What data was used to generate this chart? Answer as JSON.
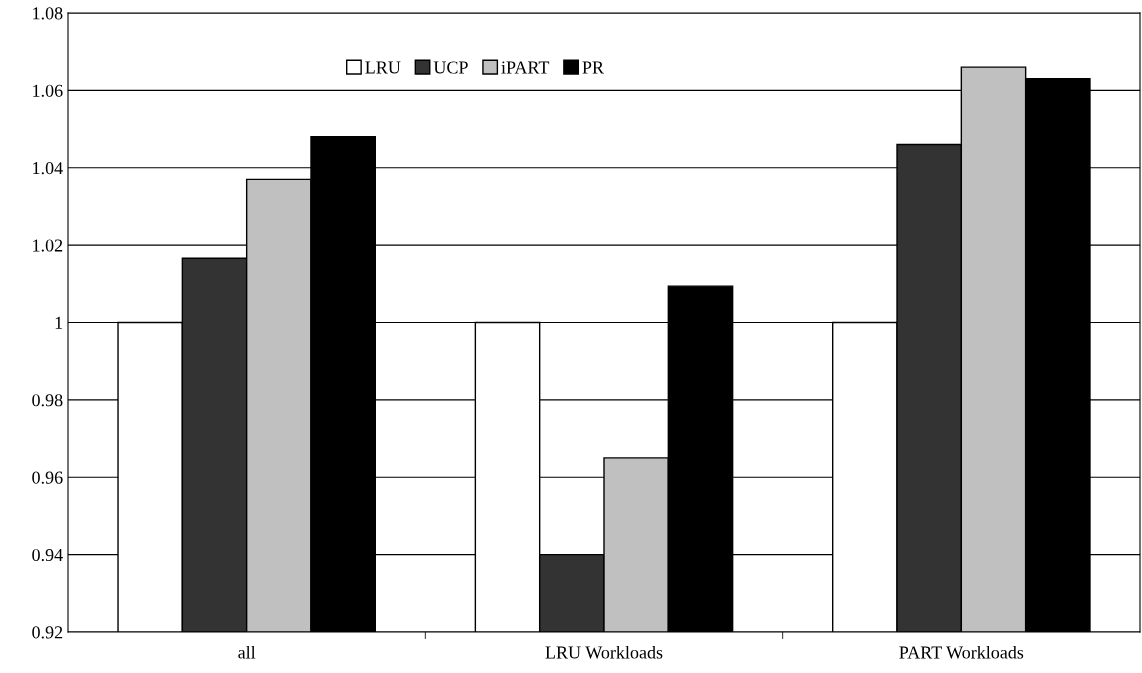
{
  "chart_data": {
    "type": "bar",
    "categories": [
      "all",
      "LRU Workloads",
      "PART Workloads"
    ],
    "series": [
      {
        "name": "LRU",
        "color": "#ffffff",
        "values": [
          1.0,
          1.0,
          1.0
        ]
      },
      {
        "name": "UCP",
        "color": "#333333",
        "values": [
          1.0166,
          0.94,
          1.046
        ]
      },
      {
        "name": "iPART",
        "color": "#c0c0c0",
        "values": [
          1.037,
          0.965,
          1.066
        ]
      },
      {
        "name": "PR",
        "color": "#000000",
        "values": [
          1.048,
          1.0094,
          1.063
        ]
      }
    ],
    "ylim": [
      0.92,
      1.08
    ],
    "yticks": [
      0.92,
      0.94,
      0.96,
      0.98,
      1,
      1.02,
      1.04,
      1.06,
      1.08
    ],
    "grid": "y",
    "legend": "top"
  }
}
